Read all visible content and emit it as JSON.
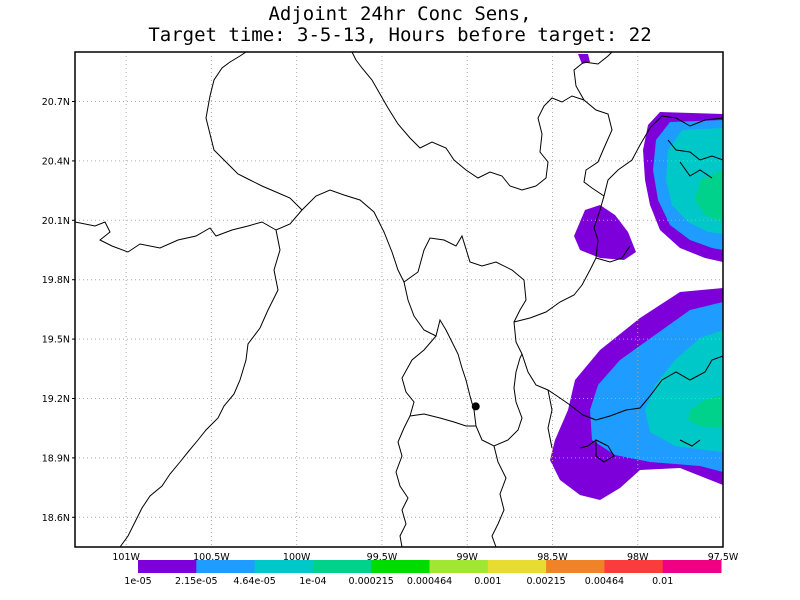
{
  "title": {
    "line1": "Adjoint 24hr Conc Sens,",
    "line2": "Target time: 3-5-13, Hours before target: 22"
  },
  "map": {
    "lat_ticks": [
      "20.7N",
      "20.4N",
      "20.1N",
      "19.8N",
      "19.5N",
      "19.2N",
      "18.9N",
      "18.6N"
    ],
    "lon_ticks": [
      "101W",
      "100.5W",
      "100W",
      "99.5W",
      "99W",
      "98.5W",
      "98W",
      "97.5W"
    ],
    "lat_range": [
      18.45,
      20.95
    ],
    "lon_range": [
      -101.3,
      -97.5
    ],
    "target_marker": {
      "lon": -98.95,
      "lat": 19.16
    }
  },
  "colorbar": {
    "levels": [
      "1e-05",
      "2.15e-05",
      "4.64e-05",
      "1e-04",
      "0.000215",
      "0.000464",
      "0.001",
      "0.00215",
      "0.00464",
      "0.01"
    ],
    "colors": [
      "#7d00db",
      "#1e9cff",
      "#00c8c8",
      "#00d28c",
      "#00dc00",
      "#a0e632",
      "#e6dc32",
      "#f08228",
      "#fa3c3c",
      "#f00082"
    ]
  }
}
